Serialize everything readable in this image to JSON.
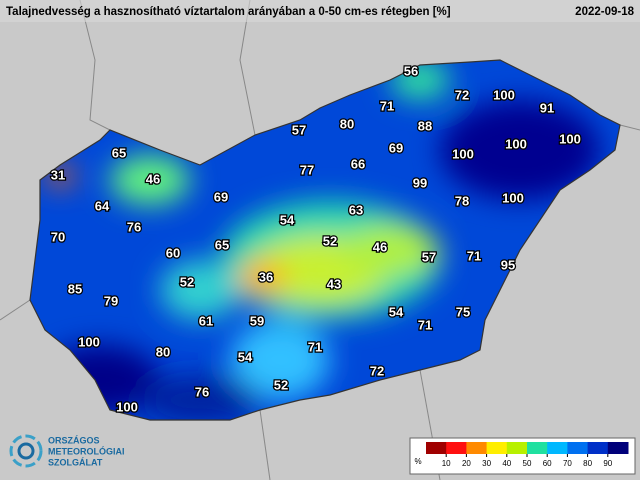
{
  "header": {
    "title": "Talajnedvesség a hasznosítható víztartalom arányában a 0-50 cm-es rétegben [%]",
    "date": "2022-09-18"
  },
  "map": {
    "values": [
      56,
      72,
      100,
      91,
      71,
      57,
      80,
      88,
      100,
      100,
      100,
      65,
      66,
      69,
      31,
      46,
      77,
      99,
      64,
      69,
      78,
      100,
      76,
      54,
      63,
      70,
      60,
      65,
      52,
      46,
      57,
      71,
      95,
      85,
      52,
      36,
      43,
      79,
      54,
      75,
      61,
      59,
      71,
      100,
      80,
      71,
      54,
      72,
      52,
      76,
      100
    ]
  },
  "legend": {
    "unit": "%",
    "ticks": [
      10,
      20,
      30,
      40,
      50,
      60,
      70,
      80,
      90
    ],
    "colors": [
      "#a00000",
      "#ff1010",
      "#ff8a00",
      "#ffee00",
      "#b8f000",
      "#20e0a0",
      "#00b8ff",
      "#0070f0",
      "#0030c8",
      "#00007a"
    ]
  },
  "logo": {
    "lines": [
      "ORSZÁGOS",
      "METEOROLÓGIAI",
      "SZOLGÁLAT"
    ]
  }
}
